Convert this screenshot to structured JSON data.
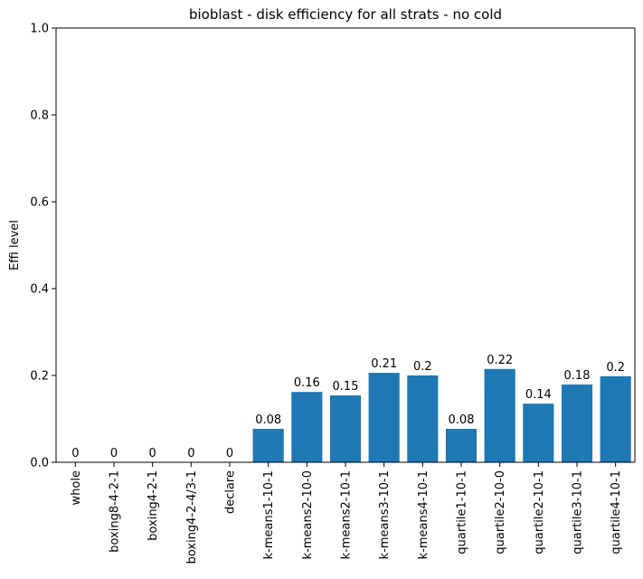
{
  "chart_data": {
    "type": "bar",
    "title": "bioblast - disk efficiency for all strats - no cold",
    "xlabel": "",
    "ylabel": "Effi level",
    "ylim": [
      0,
      1.0
    ],
    "yticks": [
      "0.0",
      "0.2",
      "0.4",
      "0.6",
      "0.8",
      "1.0"
    ],
    "grid": false,
    "bar_color": "#1f77b4",
    "categories": [
      "whole",
      "boxing8-4-2-1",
      "boxing4-2-1",
      "boxing4-2-4/3-1",
      "declare",
      "k-means1-10-1",
      "k-means2-10-0",
      "k-means2-10-1",
      "k-means3-10-1",
      "k-means4-10-1",
      "quartile1-10-1",
      "quartile2-10-0",
      "quartile2-10-1",
      "quartile3-10-1",
      "quartile4-10-1"
    ],
    "values": [
      0,
      0,
      0,
      0,
      0,
      0.077,
      0.162,
      0.154,
      0.206,
      0.2,
      0.077,
      0.215,
      0.135,
      0.179,
      0.198
    ],
    "data_labels": [
      "0",
      "0",
      "0",
      "0",
      "0",
      "0.08",
      "0.16",
      "0.15",
      "0.21",
      "0.2",
      "0.08",
      "0.22",
      "0.14",
      "0.18",
      "0.2"
    ]
  }
}
